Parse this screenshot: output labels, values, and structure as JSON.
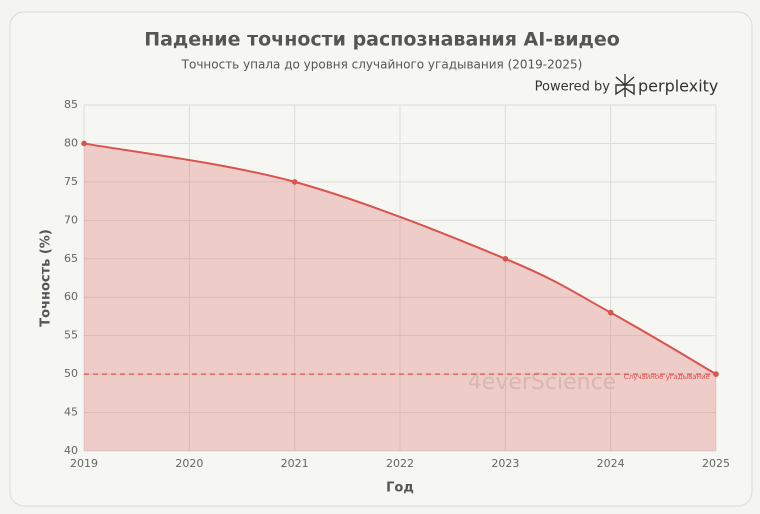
{
  "chart_data": {
    "type": "area",
    "title": "Падение точности распознавания AI-видео",
    "subtitle": "Точность упала до уровня случайного угадывания (2019-2025)",
    "powered_by": "Powered by",
    "brand": "perplexity",
    "watermark": "4everScience",
    "x_label": "Год",
    "y_label": "Точность (%)",
    "x": [
      2019,
      2021,
      2023,
      2024,
      2025
    ],
    "series": [
      {
        "name": "Точность",
        "color": "#d9534f",
        "values": [
          80,
          75,
          65,
          58,
          50
        ]
      }
    ],
    "reference_line": {
      "value": 50,
      "label": "Случайное угадывание",
      "color": "#e05050"
    },
    "xlim": [
      2019,
      2025
    ],
    "xticks": [
      2019,
      2020,
      2021,
      2022,
      2023,
      2024,
      2025
    ],
    "ylim": [
      40,
      85
    ],
    "yticks": [
      40,
      45,
      50,
      55,
      60,
      65,
      70,
      75,
      80,
      85
    ],
    "grid": true
  }
}
